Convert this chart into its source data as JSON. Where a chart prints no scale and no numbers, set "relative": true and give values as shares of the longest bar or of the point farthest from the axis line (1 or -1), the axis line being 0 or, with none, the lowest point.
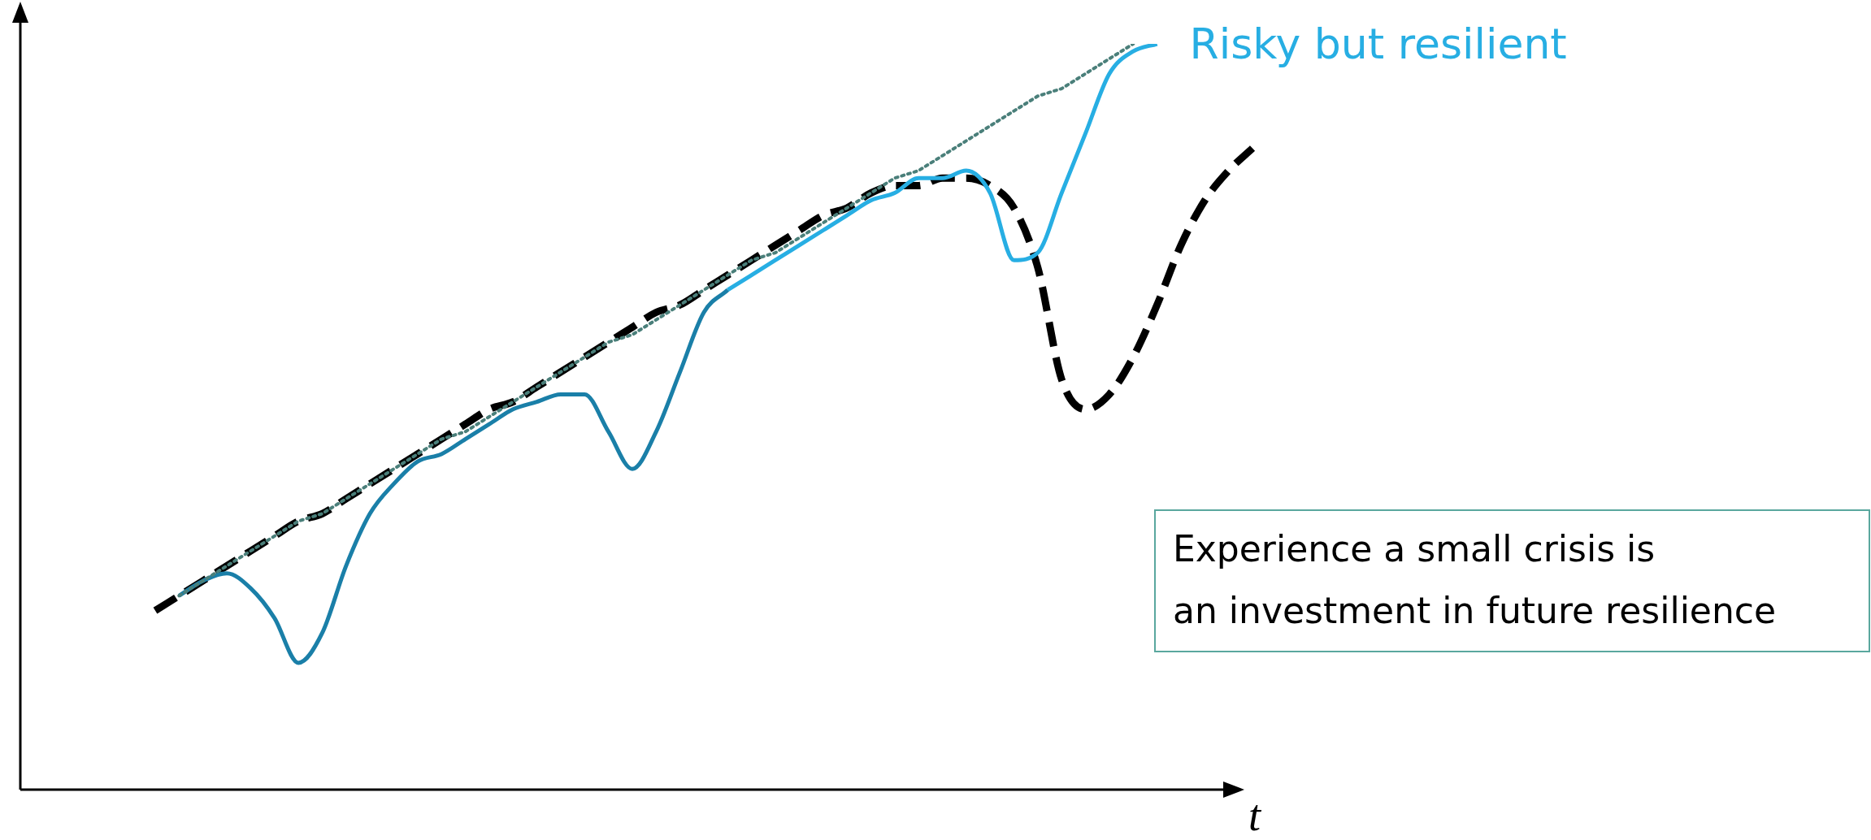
{
  "chart_data": {
    "type": "line",
    "relative": true,
    "xlabel": "t",
    "legend": false,
    "grid": false,
    "marker": "none",
    "categories": [
      null,
      null,
      null,
      null,
      null,
      null,
      null,
      null,
      null,
      null,
      null,
      null,
      null,
      null,
      null,
      null,
      null,
      null,
      null,
      null,
      null,
      null,
      null,
      null,
      null,
      null,
      null,
      null,
      null,
      null,
      null,
      null,
      null,
      null,
      null,
      null,
      null,
      null,
      null,
      null,
      null,
      null,
      null,
      null,
      null,
      null,
      null
    ],
    "series": [
      {
        "color": "#4a7f7a",
        "line_style": "dotted",
        "values": [
          null,
          0.26,
          0.28,
          0.3,
          0.32,
          0.34,
          0.36,
          0.37,
          0.39,
          0.41,
          0.43,
          0.45,
          0.47,
          0.48,
          0.5,
          0.52,
          0.54,
          0.56,
          0.58,
          0.6,
          0.61,
          0.63,
          0.65,
          0.67,
          0.69,
          0.71,
          0.72,
          0.74,
          0.76,
          0.78,
          0.8,
          0.82,
          0.83,
          0.85,
          0.87,
          0.89,
          0.91,
          0.93,
          0.94,
          0.96,
          0.98,
          1.0,
          null,
          null,
          null,
          null,
          null
        ]
      },
      {
        "color": "#1a7fa8",
        "line_style": "solid",
        "values": [
          null,
          0.26,
          0.28,
          0.29,
          0.27,
          0.23,
          0.17,
          0.21,
          0.3,
          0.37,
          0.41,
          0.44,
          0.45,
          0.47,
          0.49,
          0.51,
          0.52,
          0.53,
          0.53,
          0.48,
          0.43,
          0.48,
          0.56,
          0.64,
          0.67,
          null,
          null,
          null,
          null,
          null,
          null,
          null,
          null,
          null,
          null,
          null,
          null,
          null,
          null,
          null,
          null,
          null,
          null,
          null,
          null,
          null,
          null
        ]
      },
      {
        "name": "Risky but resilient",
        "color": "#27aee3",
        "line_style": "solid",
        "values": [
          null,
          null,
          null,
          null,
          null,
          null,
          null,
          null,
          null,
          null,
          null,
          null,
          null,
          null,
          null,
          null,
          null,
          null,
          null,
          null,
          null,
          null,
          null,
          null,
          0.67,
          0.69,
          0.71,
          0.73,
          0.75,
          0.77,
          0.79,
          0.8,
          0.82,
          0.82,
          0.83,
          0.8,
          0.71,
          0.72,
          0.8,
          0.88,
          0.96,
          0.99,
          1.0,
          null,
          null,
          null,
          null
        ]
      },
      {
        "color": "#000000",
        "line_style": "dashed",
        "values": [
          0.24,
          0.26,
          0.28,
          0.3,
          0.32,
          0.34,
          0.36,
          0.37,
          0.39,
          0.41,
          0.43,
          0.45,
          0.47,
          0.49,
          0.51,
          0.52,
          0.54,
          0.56,
          0.58,
          0.6,
          0.62,
          0.64,
          0.65,
          0.67,
          0.69,
          0.71,
          0.73,
          0.75,
          0.77,
          0.78,
          0.8,
          0.81,
          0.81,
          0.82,
          0.82,
          0.81,
          0.78,
          0.7,
          0.55,
          0.51,
          0.53,
          0.58,
          0.65,
          0.73,
          0.79,
          0.83,
          0.86
        ]
      }
    ],
    "annotations": [
      "Experience a small crisis is\nan investment in future resilience"
    ]
  }
}
